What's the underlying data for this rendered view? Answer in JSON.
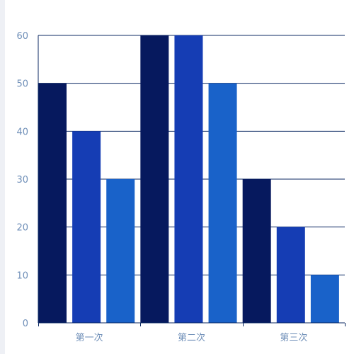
{
  "chart_data": {
    "type": "bar",
    "title": "",
    "xlabel": "",
    "ylabel": "",
    "categories": [
      "第一次",
      "第二次",
      "第三次"
    ],
    "series": [
      {
        "values": [
          50,
          60,
          30
        ],
        "color": "#06195e"
      },
      {
        "values": [
          40,
          60,
          20
        ],
        "color": "#153db4"
      },
      {
        "values": [
          30,
          50,
          10
        ],
        "color": "#1962c9"
      }
    ],
    "ylim": [
      0,
      60
    ],
    "yticks": [
      0,
      10,
      20,
      30,
      40,
      50,
      60
    ],
    "grid": true,
    "colors": {
      "grid": "#0c2a63",
      "axis": "#0c2a63",
      "tick_label": "#6f8fb8",
      "background": "#ffffff"
    }
  }
}
